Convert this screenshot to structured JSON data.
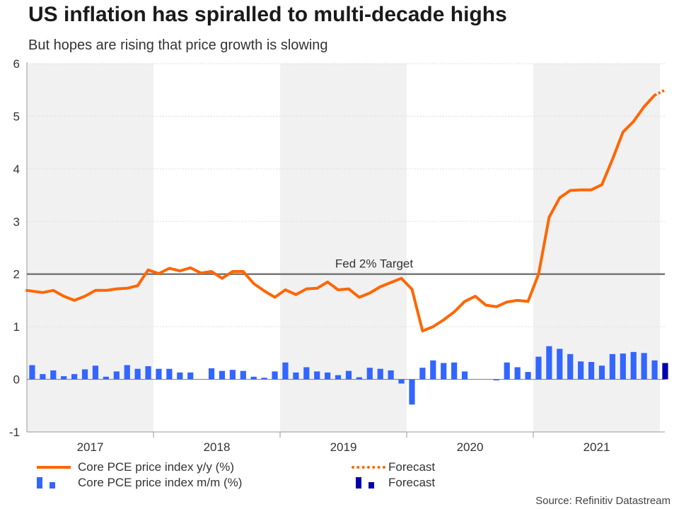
{
  "title": "US inflation has spiralled to multi-decade highs",
  "subtitle": "But hopes are rising that price growth is slowing",
  "source": "Source: Refinitiv Datastream",
  "colors": {
    "line": "#ff6600",
    "bars": "#3366ff",
    "bars_forecast": "#0000aa",
    "target": "#777777",
    "shade": "#f1f1f1",
    "grid": "#dddddd"
  },
  "legend": {
    "yy_label": "Core PCE price index y/y (%)",
    "mm_label": "Core PCE price index m/m (%)",
    "forecast_line_label": "Forecast",
    "forecast_bar_label": "Forecast"
  },
  "chart_data": {
    "type": "line+bar",
    "title": "US inflation has spiralled to multi-decade highs",
    "ylim": [
      -1,
      6
    ],
    "yticks": [
      -1,
      0,
      1,
      2,
      3,
      4,
      5,
      6
    ],
    "year_labels": [
      "2017",
      "2018",
      "2019",
      "2020",
      "2021"
    ],
    "shaded_years": [
      "2017",
      "2019",
      "2021"
    ],
    "target": {
      "value": 2,
      "label": "Fed 2% Target"
    },
    "series": [
      {
        "name": "Core PCE price index y/y (%)",
        "kind": "line",
        "values": [
          1.69,
          1.65,
          1.69,
          1.58,
          1.5,
          1.58,
          1.69,
          1.69,
          1.72,
          1.73,
          1.78,
          2.08,
          2.01,
          2.11,
          2.06,
          2.12,
          2.02,
          2.05,
          1.92,
          2.05,
          2.05,
          1.82,
          1.68,
          1.56,
          1.7,
          1.61,
          1.72,
          1.73,
          1.85,
          1.7,
          1.72,
          1.56,
          1.64,
          1.76,
          1.84,
          1.92,
          1.71,
          0.92,
          1.0,
          1.13,
          1.28,
          1.48,
          1.58,
          1.41,
          1.38,
          1.47,
          1.5,
          1.48,
          2.0,
          3.08,
          3.45,
          3.59,
          3.6,
          3.6,
          3.7,
          4.18,
          4.7,
          4.9,
          5.18,
          5.4
        ]
      },
      {
        "name": "Forecast",
        "kind": "line-forecast",
        "values": [
          5.4,
          5.5
        ]
      },
      {
        "name": "Core PCE price index m/m (%)",
        "kind": "bar",
        "values": [
          0.27,
          0.1,
          0.17,
          0.06,
          0.1,
          0.19,
          0.26,
          0.05,
          0.15,
          0.27,
          0.2,
          0.25,
          0.2,
          0.2,
          0.13,
          0.13,
          0.0,
          0.21,
          0.16,
          0.18,
          0.16,
          0.05,
          0.03,
          0.15,
          0.32,
          0.13,
          0.23,
          0.15,
          0.13,
          0.08,
          0.16,
          0.04,
          0.22,
          0.2,
          0.17,
          -0.08,
          -0.48,
          0.22,
          0.36,
          0.31,
          0.32,
          0.15,
          0.0,
          0.0,
          -0.02,
          0.32,
          0.23,
          0.14,
          0.43,
          0.63,
          0.58,
          0.48,
          0.34,
          0.33,
          0.26,
          0.48,
          0.49,
          0.52,
          0.5,
          0.36
        ]
      },
      {
        "name": "Forecast",
        "kind": "bar-forecast",
        "values": [
          0.31
        ]
      }
    ]
  }
}
